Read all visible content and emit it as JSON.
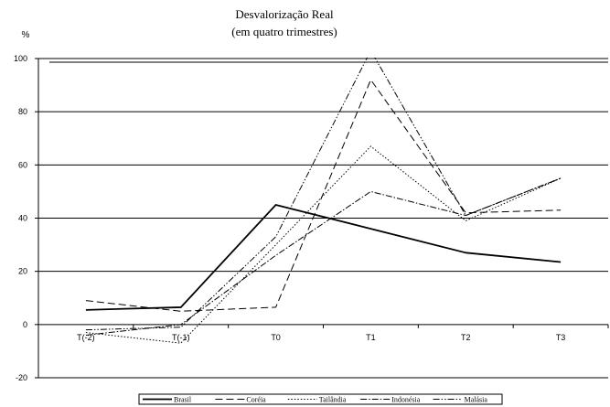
{
  "chart_data": {
    "type": "line",
    "title": "Desvalorização Real",
    "subtitle": "(em quatro trimestres)",
    "ylabel": "%",
    "xlabel": "",
    "categories": [
      "T(-2)",
      "T(-1)",
      "T0",
      "T1",
      "T2",
      "T3"
    ],
    "ylim": [
      -20,
      100
    ],
    "yticks": [
      -20,
      0,
      20,
      40,
      60,
      80,
      100
    ],
    "grid": true,
    "legend_position": "bottom",
    "series": [
      {
        "name": "Brasil",
        "values": [
          5.5,
          6.5,
          45,
          36,
          27,
          23.5
        ],
        "dash": "",
        "width": 1.8
      },
      {
        "name": "Coréia",
        "values": [
          9,
          5,
          6.5,
          92,
          42,
          43
        ],
        "dash": "8,4",
        "width": 1
      },
      {
        "name": "Tailândia",
        "values": [
          -3,
          -7,
          30,
          67,
          39,
          55
        ],
        "dash": "1.5,2",
        "width": 1
      },
      {
        "name": "Indonésia",
        "values": [
          -4,
          0,
          26,
          50,
          41,
          55
        ],
        "dash": "7,2,1.5,2",
        "width": 1
      },
      {
        "name": "Malásia",
        "values": [
          -2,
          -1,
          33,
          103,
          41,
          55
        ],
        "dash": "7,2,1.5,2,1.5,2",
        "width": 1
      }
    ]
  }
}
